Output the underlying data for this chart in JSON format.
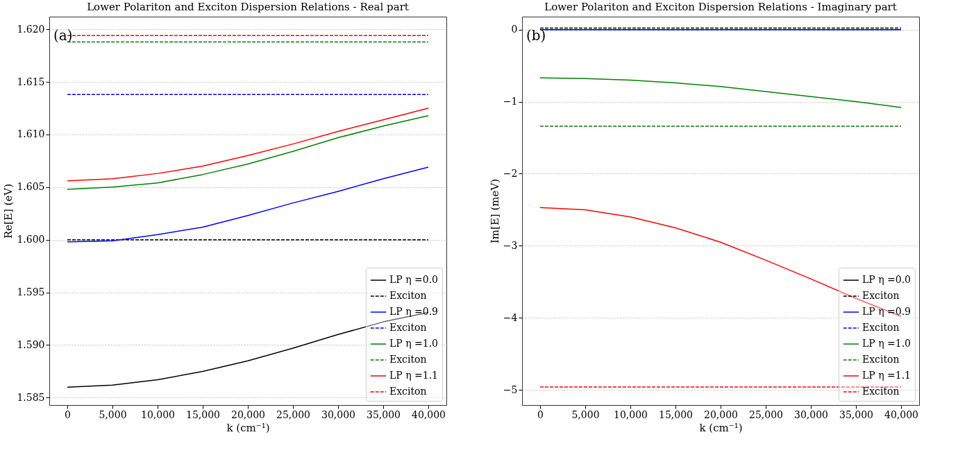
{
  "chart_data": [
    {
      "type": "line",
      "title": "Lower Polariton and Exciton Dispersion Relations - Real part",
      "xlabel": "k (cm⁻¹)",
      "ylabel": "Re[E] (eV)",
      "annotations": [
        "(a)"
      ],
      "x": [
        0,
        5000,
        10000,
        15000,
        20000,
        25000,
        30000,
        35000,
        40000
      ],
      "xlim": [
        -2000,
        42000
      ],
      "xticks": [
        {
          "value": 0,
          "label": "0"
        },
        {
          "value": 5000,
          "label": "5,000"
        },
        {
          "value": 10000,
          "label": "10,000"
        },
        {
          "value": 15000,
          "label": "15,000"
        },
        {
          "value": 20000,
          "label": "20,000"
        },
        {
          "value": 25000,
          "label": "25,000"
        },
        {
          "value": 30000,
          "label": "30,000"
        },
        {
          "value": 35000,
          "label": "35,000"
        },
        {
          "value": 40000,
          "label": "40,000"
        }
      ],
      "ylim": [
        1.5843,
        1.6212
      ],
      "yticks": [
        {
          "value": 1.585,
          "label": "1.585"
        },
        {
          "value": 1.59,
          "label": "1.590"
        },
        {
          "value": 1.595,
          "label": "1.595"
        },
        {
          "value": 1.6,
          "label": "1.600"
        },
        {
          "value": 1.605,
          "label": "1.605"
        },
        {
          "value": 1.61,
          "label": "1.610"
        },
        {
          "value": 1.615,
          "label": "1.615"
        },
        {
          "value": 1.62,
          "label": "1.620"
        }
      ],
      "grid": "y",
      "legend": "bottom right",
      "marker": "none",
      "series": [
        {
          "name": "LP η =0.0",
          "color": "#000000",
          "line_style": "solid",
          "values": [
            1.586,
            1.5862,
            1.5867,
            1.5875,
            1.5885,
            1.5897,
            1.591,
            1.5922,
            1.5931
          ]
        },
        {
          "name": "Exciton",
          "color": "#000000",
          "line_style": "dashed",
          "values": [
            1.6,
            1.6,
            1.6,
            1.6,
            1.6,
            1.6,
            1.6,
            1.6,
            1.6
          ]
        },
        {
          "name": "LP η =0.9",
          "color": "#0000ff",
          "line_style": "solid",
          "values": [
            1.5998,
            1.5999,
            1.6005,
            1.6012,
            1.6023,
            1.6035,
            1.6046,
            1.6058,
            1.6069
          ]
        },
        {
          "name": "Exciton",
          "color": "#0000ff",
          "line_style": "dashed",
          "values": [
            1.6138,
            1.6138,
            1.6138,
            1.6138,
            1.6138,
            1.6138,
            1.6138,
            1.6138,
            1.6138
          ]
        },
        {
          "name": "LP η =1.0",
          "color": "#008000",
          "line_style": "solid",
          "values": [
            1.6048,
            1.605,
            1.6054,
            1.6062,
            1.6072,
            1.6084,
            1.6097,
            1.6108,
            1.6118
          ]
        },
        {
          "name": "Exciton",
          "color": "#008000",
          "line_style": "dashed",
          "values": [
            1.6188,
            1.6188,
            1.6188,
            1.6188,
            1.6188,
            1.6188,
            1.6188,
            1.6188,
            1.6188
          ]
        },
        {
          "name": "LP η =1.1",
          "color": "#ff0000",
          "line_style": "solid",
          "values": [
            1.6056,
            1.6058,
            1.6063,
            1.607,
            1.608,
            1.6091,
            1.6103,
            1.6114,
            1.6125
          ]
        },
        {
          "name": "Exciton",
          "color": "#ff0000",
          "line_style": "dashed",
          "values": [
            1.6194,
            1.6194,
            1.6194,
            1.6194,
            1.6194,
            1.6194,
            1.6194,
            1.6194,
            1.6194
          ]
        }
      ]
    },
    {
      "type": "line",
      "title": "Lower Polariton and Exciton Dispersion Relations - Imaginary part",
      "xlabel": "k (cm⁻¹)",
      "ylabel": "Im[E] (meV)",
      "annotations": [
        "(b)"
      ],
      "x": [
        0,
        5000,
        10000,
        15000,
        20000,
        25000,
        30000,
        35000,
        40000
      ],
      "xlim": [
        -2000,
        42000
      ],
      "xticks": [
        {
          "value": 0,
          "label": "0"
        },
        {
          "value": 5000,
          "label": "5,000"
        },
        {
          "value": 10000,
          "label": "10,000"
        },
        {
          "value": 15000,
          "label": "15,000"
        },
        {
          "value": 20000,
          "label": "20,000"
        },
        {
          "value": 25000,
          "label": "25,000"
        },
        {
          "value": 30000,
          "label": "30,000"
        },
        {
          "value": 35000,
          "label": "35,000"
        },
        {
          "value": 40000,
          "label": "40,000"
        }
      ],
      "ylim": [
        -5.21,
        0.18
      ],
      "yticks": [
        {
          "value": -5,
          "label": "−5"
        },
        {
          "value": -4,
          "label": "−4"
        },
        {
          "value": -3,
          "label": "−3"
        },
        {
          "value": -2,
          "label": "−2"
        },
        {
          "value": -1,
          "label": "−1"
        },
        0
      ],
      "grid": "y",
      "legend": "bottom right",
      "marker": "none",
      "series": [
        {
          "name": "LP η =0.0",
          "color": "#000000",
          "line_style": "solid",
          "values": [
            null,
            null,
            null,
            null,
            null,
            null,
            null,
            null,
            null
          ]
        },
        {
          "name": "Exciton",
          "color": "#000000",
          "line_style": "dashed",
          "values": [
            0.02,
            0.02,
            0.02,
            0.02,
            0.02,
            0.02,
            0.02,
            0.02,
            0.02
          ]
        },
        {
          "name": "LP η =0.9",
          "color": "#0000ff",
          "line_style": "solid",
          "values": [
            0,
            0,
            0,
            0,
            0,
            0,
            0,
            0,
            0
          ]
        },
        {
          "name": "Exciton",
          "color": "#0000ff",
          "line_style": "dashed",
          "values": [
            0,
            0,
            0,
            0,
            0,
            0,
            0,
            0,
            0
          ]
        },
        {
          "name": "LP η =1.0",
          "color": "#008000",
          "line_style": "solid",
          "values": [
            -0.67,
            -0.68,
            -0.7,
            -0.74,
            -0.79,
            -0.86,
            -0.93,
            -1.0,
            -1.08
          ]
        },
        {
          "name": "Exciton",
          "color": "#008000",
          "line_style": "dashed",
          "values": [
            -1.34,
            -1.34,
            -1.34,
            -1.34,
            -1.34,
            -1.34,
            -1.34,
            -1.34,
            -1.34
          ]
        },
        {
          "name": "LP η =1.1",
          "color": "#ff0000",
          "line_style": "solid",
          "values": [
            -2.47,
            -2.5,
            -2.6,
            -2.75,
            -2.95,
            -3.2,
            -3.46,
            -3.73,
            -3.98
          ]
        },
        {
          "name": "Exciton",
          "color": "#ff0000",
          "line_style": "dashed",
          "values": [
            -4.96,
            -4.96,
            -4.96,
            -4.96,
            -4.96,
            -4.96,
            -4.96,
            -4.96,
            -4.96
          ]
        }
      ]
    }
  ]
}
